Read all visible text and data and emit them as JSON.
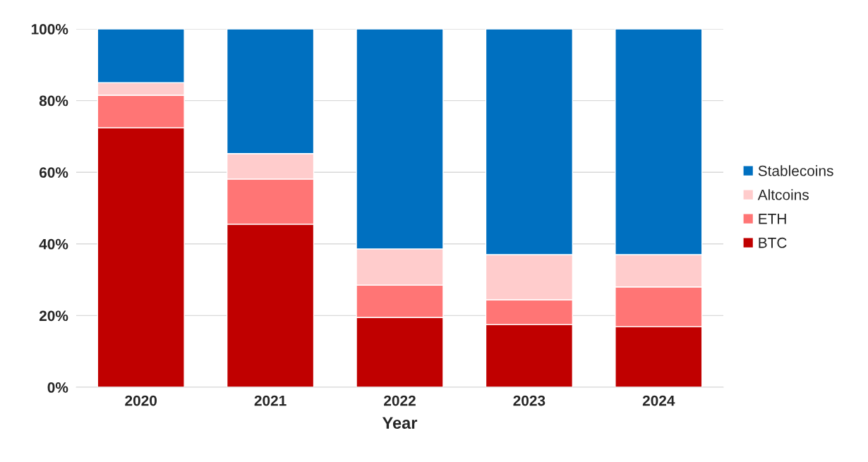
{
  "chart_data": {
    "type": "bar",
    "stacked": true,
    "xlabel": "Year",
    "categories": [
      "2020",
      "2021",
      "2022",
      "2023",
      "2024"
    ],
    "series": [
      {
        "name": "BTC",
        "color": "#c00000",
        "values": [
          72.4,
          45.5,
          19.5,
          17.5,
          16.9
        ]
      },
      {
        "name": "ETH",
        "color": "#ff7575",
        "values": [
          9.1,
          12.6,
          9.0,
          6.9,
          11.1
        ]
      },
      {
        "name": "Altcoins",
        "color": "#ffcccc",
        "values": [
          3.5,
          7.1,
          10.1,
          12.6,
          9.0
        ]
      },
      {
        "name": "Stablecoins",
        "color": "#0070c0",
        "values": [
          15.0,
          34.8,
          61.4,
          63.0,
          63.0
        ]
      }
    ],
    "ylim": [
      0,
      100
    ],
    "yticks": [
      {
        "value": 0,
        "label": "0%"
      },
      {
        "value": 20,
        "label": "20%"
      },
      {
        "value": 40,
        "label": "40%"
      },
      {
        "value": 60,
        "label": "60%"
      },
      {
        "value": 80,
        "label": "80%"
      },
      {
        "value": 100,
        "label": "100%"
      }
    ],
    "grid": "y",
    "legend": "right"
  }
}
